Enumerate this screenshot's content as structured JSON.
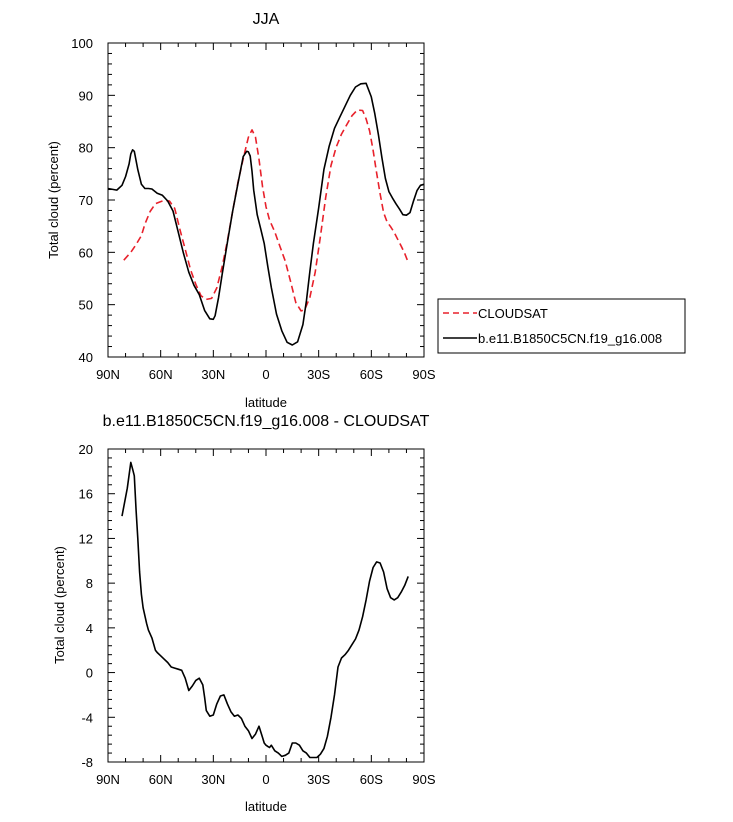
{
  "chart_data": [
    {
      "type": "line",
      "title": "JJA",
      "xlabel": "latitude",
      "ylabel": "Total cloud (percent)",
      "xlim": [
        90,
        -90
      ],
      "ylim": [
        40,
        100
      ],
      "x_tick_values": [
        90,
        60,
        30,
        0,
        -30,
        -60,
        -90
      ],
      "x_tick_labels": [
        "90N",
        "60N",
        "30N",
        "0",
        "30S",
        "60S",
        "90S"
      ],
      "y_tick_values": [
        40,
        50,
        60,
        70,
        80,
        90,
        100
      ],
      "y_tick_labels": [
        "40",
        "50",
        "60",
        "70",
        "80",
        "90",
        "100"
      ],
      "legend_position": "right",
      "series": [
        {
          "name": "CLOUDSAT",
          "color": "#e8212b",
          "dash": "dashed",
          "x": [
            81,
            77,
            74,
            71,
            69,
            66,
            63,
            60,
            58,
            55,
            52,
            49,
            46,
            43,
            40,
            37,
            34,
            31,
            28,
            25,
            22,
            19,
            16,
            13,
            10,
            8,
            6,
            4,
            2,
            0,
            -2,
            -5,
            -8,
            -11,
            -14,
            -17,
            -20,
            -22,
            -25,
            -28,
            -31,
            -34,
            -37,
            -40,
            -43,
            -46,
            -49,
            -52,
            -55,
            -57,
            -59,
            -61,
            -63,
            -65,
            -67,
            -69,
            -71,
            -73,
            -75,
            -77,
            -79,
            -81
          ],
          "y": [
            58.5,
            60,
            61.5,
            63.2,
            65.4,
            67.8,
            69.3,
            69.7,
            69.9,
            69.8,
            68.4,
            64.3,
            60.6,
            56.7,
            53.9,
            51.7,
            51,
            51.2,
            53.2,
            57.2,
            62.2,
            67.8,
            73.3,
            77.9,
            82,
            83.4,
            82,
            77.8,
            72.6,
            68.7,
            66.2,
            63.9,
            61.1,
            58.3,
            54.4,
            50.4,
            48.8,
            49,
            51.4,
            56.2,
            63,
            70.5,
            76.6,
            80.1,
            82.6,
            84.4,
            86.1,
            87.2,
            87.1,
            85.5,
            83.2,
            79.5,
            75.2,
            71.2,
            67.6,
            65.8,
            64.9,
            63.8,
            62.5,
            61.2,
            59.8,
            58.1
          ]
        },
        {
          "name": "b.e11.B1850C5CN.f19_g16.008",
          "color": "#000000",
          "dash": "solid",
          "x": [
            90,
            85,
            82,
            80,
            78,
            77,
            76,
            75,
            73,
            71,
            69,
            67,
            65,
            62,
            59,
            56,
            53,
            50,
            47,
            44,
            41,
            38,
            35,
            32,
            30,
            29,
            27,
            25,
            22,
            19,
            16,
            13,
            11,
            10,
            9,
            8,
            7,
            5,
            3,
            1,
            -1,
            -3,
            -6,
            -9,
            -12,
            -15,
            -18,
            -21,
            -23,
            -25,
            -27,
            -30,
            -33,
            -36,
            -39,
            -42,
            -45,
            -48,
            -51,
            -54,
            -57,
            -60,
            -62,
            -64,
            -66,
            -68,
            -70,
            -72,
            -74,
            -76,
            -78,
            -80,
            -82,
            -84,
            -86,
            -88,
            -90
          ],
          "y": [
            72.2,
            71.9,
            72.8,
            74.5,
            76.9,
            78.8,
            79.6,
            79.3,
            75.8,
            73,
            72.2,
            72.2,
            72.1,
            71.3,
            70.9,
            69.8,
            67.9,
            63.9,
            59.8,
            56.2,
            53.7,
            51.9,
            48.9,
            47.3,
            47.2,
            47.9,
            51.4,
            55.7,
            61.9,
            67.8,
            73.1,
            78.3,
            79.3,
            79.2,
            78.4,
            75.5,
            71.9,
            67.2,
            64.5,
            61.7,
            57.3,
            53.3,
            48.2,
            45,
            42.8,
            42.3,
            42.9,
            46.2,
            50.7,
            56.4,
            61.7,
            68.5,
            75.8,
            80.3,
            83.7,
            85.8,
            87.9,
            90,
            91.6,
            92.2,
            92.3,
            89.7,
            86.5,
            82.5,
            78.1,
            74.1,
            71.6,
            70.4,
            69.3,
            68.3,
            67.2,
            67.1,
            67.6,
            69.8,
            71.8,
            72.8,
            73
          ]
        }
      ]
    },
    {
      "type": "line",
      "title": "b.e11.B1850C5CN.f19_g16.008 - CLOUDSAT",
      "xlabel": "latitude",
      "ylabel": "Total cloud (percent)",
      "xlim": [
        90,
        -90
      ],
      "ylim": [
        -8,
        20
      ],
      "x_tick_values": [
        90,
        60,
        30,
        0,
        -30,
        -60,
        -90
      ],
      "x_tick_labels": [
        "90N",
        "60N",
        "30N",
        "0",
        "30S",
        "60S",
        "90S"
      ],
      "y_tick_values": [
        -8,
        -4,
        0,
        4,
        8,
        12,
        16,
        20
      ],
      "y_tick_labels": [
        "-8",
        "-4",
        "0",
        "4",
        "8",
        "12",
        "16",
        "20"
      ],
      "series": [
        {
          "color": "#000000",
          "dash": "solid",
          "x": [
            82,
            79,
            77,
            76,
            75,
            74,
            73,
            72,
            71,
            70,
            68,
            67,
            65,
            63,
            62,
            60,
            58,
            56,
            54,
            52,
            50,
            48,
            46,
            44,
            42,
            40,
            38,
            36,
            35,
            34,
            32,
            30,
            28,
            26,
            24,
            22,
            20,
            18,
            16,
            14,
            12,
            10,
            8,
            6,
            4,
            2,
            1,
            0,
            -1,
            -2,
            -3,
            -5,
            -7,
            -9,
            -11,
            -13,
            -15,
            -17,
            -19,
            -21,
            -23,
            -25,
            -27,
            -29,
            -31,
            -33,
            -35,
            -37,
            -39,
            -41,
            -43,
            -45,
            -47,
            -49,
            -51,
            -53,
            -55,
            -57,
            -59,
            -61,
            -63,
            -65,
            -67,
            -69,
            -71,
            -73,
            -75,
            -77,
            -79,
            -81
          ],
          "y": [
            14,
            16.5,
            18.8,
            18.2,
            17.6,
            14.5,
            12,
            9,
            7,
            5.8,
            4.4,
            3.8,
            3.1,
            2,
            1.8,
            1.5,
            1.2,
            0.9,
            0.5,
            0.4,
            0.3,
            0.2,
            -0.5,
            -1.6,
            -1.2,
            -0.7,
            -0.5,
            -1.1,
            -2.2,
            -3.4,
            -3.9,
            -3.8,
            -2.8,
            -2.1,
            -2,
            -2.8,
            -3.5,
            -3.9,
            -3.8,
            -4.1,
            -4.8,
            -5.2,
            -5.9,
            -5.5,
            -4.8,
            -5.8,
            -6.3,
            -6.5,
            -6.6,
            -6.7,
            -6.5,
            -7,
            -7.2,
            -7.5,
            -7.4,
            -7.2,
            -6.3,
            -6.3,
            -6.5,
            -7,
            -7.2,
            -7.6,
            -7.6,
            -7.6,
            -7.3,
            -6.8,
            -5.7,
            -4,
            -2,
            0.5,
            1.3,
            1.6,
            2,
            2.5,
            3,
            3.8,
            5,
            6.5,
            8.2,
            9.4,
            9.9,
            9.8,
            9,
            7.5,
            6.7,
            6.5,
            6.7,
            7.2,
            7.8,
            8.6
          ]
        }
      ]
    }
  ]
}
